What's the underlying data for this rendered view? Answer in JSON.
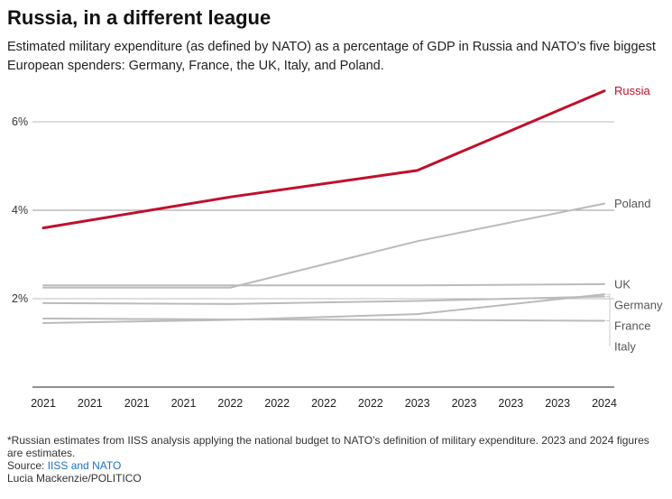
{
  "header": {
    "title": "Russia, in a different league",
    "subtitle": "Estimated military expenditure (as defined by NATO) as a percentage of GDP in Russia and NATO’s five biggest European spenders: Germany, France, the UK, Italy, and Poland."
  },
  "footer": {
    "note": "*Russian estimates from IISS analysis applying the national budget to NATO’s definition of military expenditure. 2023 and 2024 figures are estimates.",
    "source_label": "Source: ",
    "source_link": "IISS and NATO",
    "credit": "Lucia Mackenzie/POLITICO"
  },
  "chart_data": {
    "type": "line",
    "x": [
      2021,
      2022,
      2023,
      2024
    ],
    "x_tick_labels": [
      "2021",
      "2021",
      "2021",
      "2021",
      "2022",
      "2022",
      "2022",
      "2022",
      "2023",
      "2023",
      "2023",
      "2023",
      "2024"
    ],
    "y_tick_labels": [
      "2%",
      "4%",
      "6%"
    ],
    "y_ticks": [
      2,
      4,
      6
    ],
    "ylim": [
      0,
      7
    ],
    "xlim": [
      2021,
      2024
    ],
    "grid": true,
    "series": [
      {
        "name": "Russia",
        "values": [
          3.6,
          4.3,
          4.9,
          6.7
        ],
        "color": "#c0102c",
        "highlight": true
      },
      {
        "name": "Poland",
        "values": [
          2.25,
          2.25,
          3.3,
          4.15
        ],
        "color": "#bbbbbb"
      },
      {
        "name": "UK",
        "values": [
          2.3,
          2.3,
          2.3,
          2.33
        ],
        "color": "#bbbbbb"
      },
      {
        "name": "Germany",
        "values": [
          1.45,
          1.52,
          1.65,
          2.1
        ],
        "color": "#bbbbbb"
      },
      {
        "name": "France",
        "values": [
          1.9,
          1.88,
          1.95,
          2.05
        ],
        "color": "#bbbbbb"
      },
      {
        "name": "Italy",
        "values": [
          1.55,
          1.53,
          1.52,
          1.5
        ],
        "color": "#bbbbbb"
      }
    ]
  }
}
